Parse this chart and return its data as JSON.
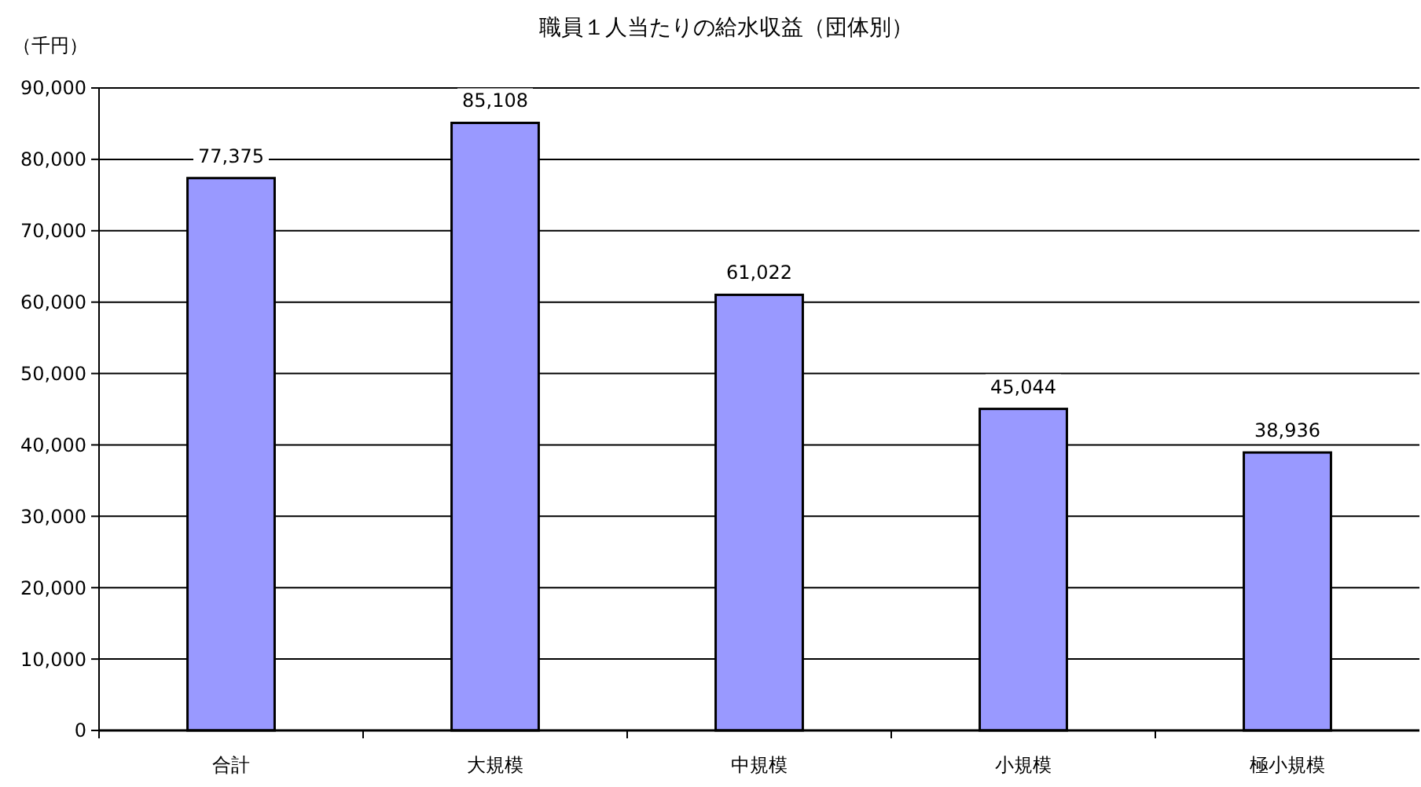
{
  "chart_data": {
    "type": "bar",
    "title": "職員１人当たりの給水収益（団体別）",
    "ylabel": "（千円）",
    "categories": [
      "合計",
      "大規模",
      "中規模",
      "小規模",
      "極小規模"
    ],
    "values": [
      77375,
      85108,
      61022,
      45044,
      38936
    ],
    "value_labels": [
      "77,375",
      "85,108",
      "61,022",
      "45,044",
      "38,936"
    ],
    "color": "#9999ff",
    "ylim": [
      0,
      90000
    ],
    "yticks": [
      {
        "value": 0,
        "label": "0"
      },
      {
        "value": 10000,
        "label": "10,000"
      },
      {
        "value": 20000,
        "label": "20,000"
      },
      {
        "value": 30000,
        "label": "30,000"
      },
      {
        "value": 40000,
        "label": "40,000"
      },
      {
        "value": 50000,
        "label": "50,000"
      },
      {
        "value": 60000,
        "label": "60,000"
      },
      {
        "value": 70000,
        "label": "70,000"
      },
      {
        "value": 80000,
        "label": "80,000"
      },
      {
        "value": 90000,
        "label": "90,000"
      }
    ],
    "grid": "y"
  }
}
